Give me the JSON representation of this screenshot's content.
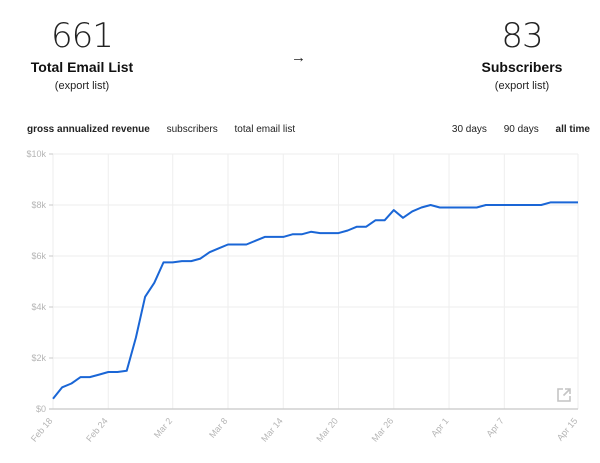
{
  "stats": {
    "left": {
      "value": "661",
      "label": "Total Email List",
      "link": "(export list)"
    },
    "arrow": "→",
    "right": {
      "value": "83",
      "label": "Subscribers",
      "link": "(export list)"
    }
  },
  "metric_tabs": [
    {
      "label": "gross annualized revenue",
      "active": true
    },
    {
      "label": "subscribers",
      "active": false
    },
    {
      "label": "total email list",
      "active": false
    }
  ],
  "range_tabs": [
    {
      "label": "30 days",
      "active": false
    },
    {
      "label": "90 days",
      "active": false
    },
    {
      "label": "all time",
      "active": true
    }
  ],
  "icons": {
    "open_external": "external-link-icon"
  },
  "colors": {
    "line": "#1a66d6",
    "grid": "#eeeeee",
    "axis": "#c8c8c8",
    "tick_text": "#b5b5b5"
  },
  "chart_data": {
    "type": "line",
    "title": "gross annualized revenue",
    "xlabel": "",
    "ylabel": "",
    "ylim": [
      0,
      10000
    ],
    "yticks": [
      "$0",
      "$2k",
      "$4k",
      "$6k",
      "$8k",
      "$10k"
    ],
    "xticks": [
      "Feb 18",
      "Feb 24",
      "Mar 2",
      "Mar 8",
      "Mar 14",
      "Mar 20",
      "Mar 26",
      "Apr 1",
      "Apr 7",
      "Apr 15"
    ],
    "grid": true,
    "legend": "none",
    "series": [
      {
        "name": "gross annualized revenue",
        "x": [
          "Feb 18",
          "Feb 19",
          "Feb 20",
          "Feb 21",
          "Feb 22",
          "Feb 23",
          "Feb 24",
          "Feb 25",
          "Feb 26",
          "Feb 27",
          "Feb 28",
          "Feb 29",
          "Mar 1",
          "Mar 2",
          "Mar 3",
          "Mar 4",
          "Mar 5",
          "Mar 6",
          "Mar 7",
          "Mar 8",
          "Mar 9",
          "Mar 10",
          "Mar 11",
          "Mar 12",
          "Mar 13",
          "Mar 14",
          "Mar 15",
          "Mar 16",
          "Mar 17",
          "Mar 18",
          "Mar 19",
          "Mar 20",
          "Mar 21",
          "Mar 22",
          "Mar 23",
          "Mar 24",
          "Mar 25",
          "Mar 26",
          "Mar 27",
          "Mar 28",
          "Mar 29",
          "Mar 30",
          "Mar 31",
          "Apr 1",
          "Apr 2",
          "Apr 3",
          "Apr 4",
          "Apr 5",
          "Apr 6",
          "Apr 7",
          "Apr 8",
          "Apr 9",
          "Apr 10",
          "Apr 11",
          "Apr 12",
          "Apr 13",
          "Apr 14",
          "Apr 15"
        ],
        "values": [
          400,
          850,
          1000,
          1250,
          1250,
          1350,
          1450,
          1450,
          1500,
          2800,
          4400,
          4950,
          5750,
          5750,
          5800,
          5800,
          5900,
          6150,
          6300,
          6450,
          6450,
          6450,
          6600,
          6750,
          6750,
          6750,
          6850,
          6850,
          6950,
          6900,
          6900,
          6900,
          7000,
          7150,
          7150,
          7400,
          7400,
          7800,
          7500,
          7750,
          7900,
          8000,
          7900,
          7900,
          7900,
          7900,
          7900,
          8000,
          8000,
          8000,
          8000,
          8000,
          8000,
          8000,
          8100,
          8100,
          8100,
          8100
        ]
      }
    ]
  }
}
